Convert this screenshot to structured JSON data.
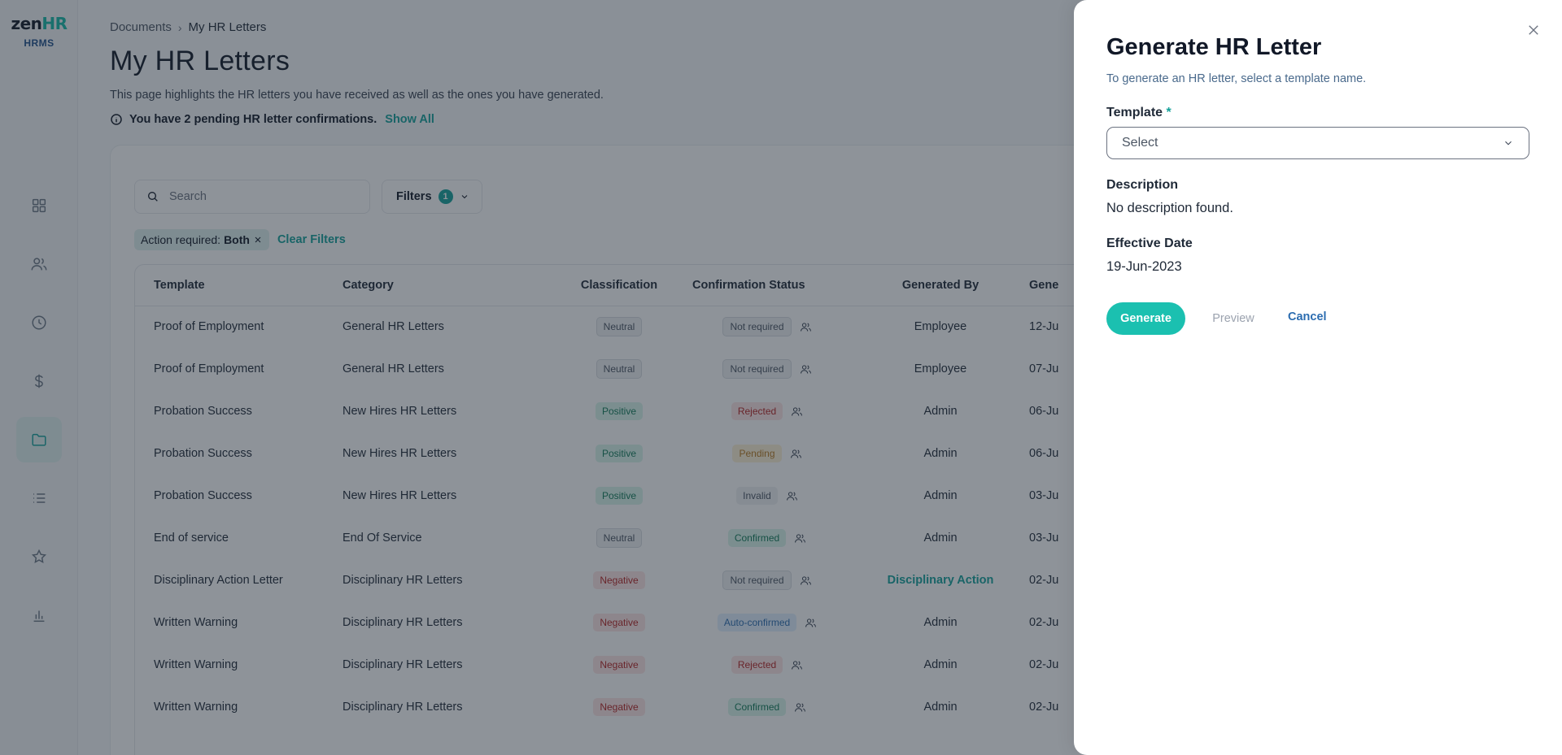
{
  "logo": {
    "main_a": "zen",
    "main_b": "HR",
    "sub": "HRMS"
  },
  "sidebar": {
    "items": [
      {
        "icon": "dashboard-icon",
        "active": false
      },
      {
        "icon": "users-icon",
        "active": false
      },
      {
        "icon": "clock-icon",
        "active": false
      },
      {
        "icon": "dollar-icon",
        "active": false
      },
      {
        "icon": "folder-icon",
        "active": true
      },
      {
        "icon": "list-icon",
        "active": false
      },
      {
        "icon": "star-icon",
        "active": false
      },
      {
        "icon": "bar-chart-icon",
        "active": false
      }
    ]
  },
  "breadcrumb": {
    "root": "Documents",
    "separator": "›",
    "current": "My HR Letters"
  },
  "page": {
    "title": "My HR Letters",
    "subtitle": "This page highlights the HR letters you have received as well as the ones you have generated.",
    "pending_text": "You have 2 pending HR letter confirmations.",
    "show_all": "Show All"
  },
  "toolbar": {
    "search_placeholder": "Search",
    "filters_label": "Filters",
    "filters_count": "1",
    "chip_label": "Action required:",
    "chip_value": "Both",
    "clear_filters": "Clear Filters"
  },
  "table": {
    "headers": [
      "Template",
      "Category",
      "Classification",
      "Confirmation Status",
      "Generated By",
      "Gene"
    ],
    "rows": [
      {
        "template": "Proof of Employment",
        "category": "General HR Letters",
        "classification": "Neutral",
        "class_style": "b-neutral",
        "status": "Not required",
        "status_style": "b-notreq",
        "generated_by": "Employee",
        "date": "12-Ju"
      },
      {
        "template": "Proof of Employment",
        "category": "General HR Letters",
        "classification": "Neutral",
        "class_style": "b-neutral",
        "status": "Not required",
        "status_style": "b-notreq",
        "generated_by": "Employee",
        "date": "07-Ju"
      },
      {
        "template": "Probation Success",
        "category": "New Hires HR Letters",
        "classification": "Positive",
        "class_style": "b-positive",
        "status": "Rejected",
        "status_style": "b-rejected",
        "generated_by": "Admin",
        "date": "06-Ju"
      },
      {
        "template": "Probation Success",
        "category": "New Hires HR Letters",
        "classification": "Positive",
        "class_style": "b-positive",
        "status": "Pending",
        "status_style": "b-pending",
        "generated_by": "Admin",
        "date": "06-Ju"
      },
      {
        "template": "Probation Success",
        "category": "New Hires HR Letters",
        "classification": "Positive",
        "class_style": "b-positive",
        "status": "Invalid",
        "status_style": "b-invalid",
        "generated_by": "Admin",
        "date": "03-Ju"
      },
      {
        "template": "End of service",
        "category": "End Of Service",
        "classification": "Neutral",
        "class_style": "b-neutral",
        "status": "Confirmed",
        "status_style": "b-confirmed",
        "generated_by": "Admin",
        "date": "03-Ju"
      },
      {
        "template": "Disciplinary Action Letter",
        "category": "Disciplinary HR Letters",
        "classification": "Negative",
        "class_style": "b-negative",
        "status": "Not required",
        "status_style": "b-notreq",
        "generated_by": "Disciplinary Action",
        "generated_by_link": true,
        "date": "02-Ju"
      },
      {
        "template": "Written Warning",
        "category": "Disciplinary HR Letters",
        "classification": "Negative",
        "class_style": "b-negative",
        "status": "Auto-confirmed",
        "status_style": "b-auto",
        "generated_by": "Admin",
        "date": "02-Ju"
      },
      {
        "template": "Written Warning",
        "category": "Disciplinary HR Letters",
        "classification": "Negative",
        "class_style": "b-negative",
        "status": "Rejected",
        "status_style": "b-rejected",
        "generated_by": "Admin",
        "date": "02-Ju"
      },
      {
        "template": "Written Warning",
        "category": "Disciplinary HR Letters",
        "classification": "Negative",
        "class_style": "b-negative",
        "status": "Confirmed",
        "status_style": "b-confirmed",
        "generated_by": "Admin",
        "date": "02-Ju"
      }
    ]
  },
  "drawer": {
    "title": "Generate HR Letter",
    "subtitle": "To generate an HR letter, select a template name.",
    "template_label": "Template",
    "required_mark": "*",
    "template_placeholder": "Select",
    "description_label": "Description",
    "description_value": "No description found.",
    "effective_label": "Effective Date",
    "effective_value": "19-Jun-2023",
    "generate": "Generate",
    "preview": "Preview",
    "cancel": "Cancel"
  },
  "colors": {
    "accent": "#14a19a",
    "generate_button": "#1bc0b0",
    "cancel_link": "#2b6cb0"
  }
}
